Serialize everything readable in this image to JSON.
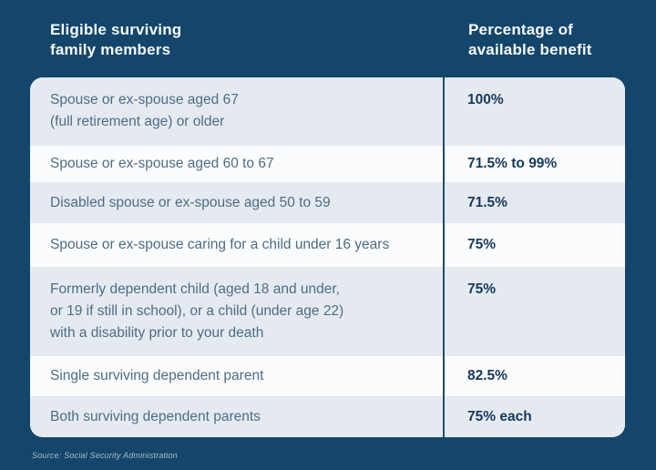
{
  "header": {
    "members": "Eligible surviving\nfamily members",
    "benefit": "Percentage of\navailable benefit"
  },
  "rows": [
    {
      "member": "Spouse or ex-spouse aged 67\n(full retirement age) or older",
      "benefit": "100%"
    },
    {
      "member": "Spouse or ex-spouse aged 60 to 67",
      "benefit": "71.5% to 99%"
    },
    {
      "member": "Disabled spouse or ex-spouse aged 50 to 59",
      "benefit": "71.5%"
    },
    {
      "member": "Spouse or ex-spouse caring for a child under 16 years",
      "benefit": "75%"
    },
    {
      "member": "Formerly dependent child (aged 18 and under,\nor 19 if still in school), or a child (under age 22)\nwith a disability prior to your death",
      "benefit": "75%"
    },
    {
      "member": "Single surviving dependent parent",
      "benefit": "82.5%"
    },
    {
      "member": "Both surviving dependent parents",
      "benefit": "75% each"
    }
  ],
  "source": "Source: Social Security Administration",
  "colors": {
    "background": "#14466b",
    "header_text": "#f6f9fc",
    "row_light": "#e5eaf1",
    "row_white": "#fbfcfe",
    "divider": "#1f4b6e",
    "member_text": "#4e6c84",
    "value_text": "#16395c",
    "source_text": "#a9bac9"
  },
  "chart_data": {
    "type": "table",
    "title": "",
    "columns": [
      "Eligible surviving family members",
      "Percentage of available benefit"
    ],
    "rows": [
      [
        "Spouse or ex-spouse aged 67 (full retirement age) or older",
        "100%"
      ],
      [
        "Spouse or ex-spouse aged 60 to 67",
        "71.5% to 99%"
      ],
      [
        "Disabled spouse or ex-spouse aged 50 to 59",
        "71.5%"
      ],
      [
        "Spouse or ex-spouse caring for a child under 16 years",
        "75%"
      ],
      [
        "Formerly dependent child (aged 18 and under, or 19 if still in school), or a child (under age 22) with a disability prior to your death",
        "75%"
      ],
      [
        "Single surviving dependent parent",
        "82.5%"
      ],
      [
        "Both surviving dependent parents",
        "75% each"
      ]
    ],
    "source": "Source: Social Security Administration"
  }
}
